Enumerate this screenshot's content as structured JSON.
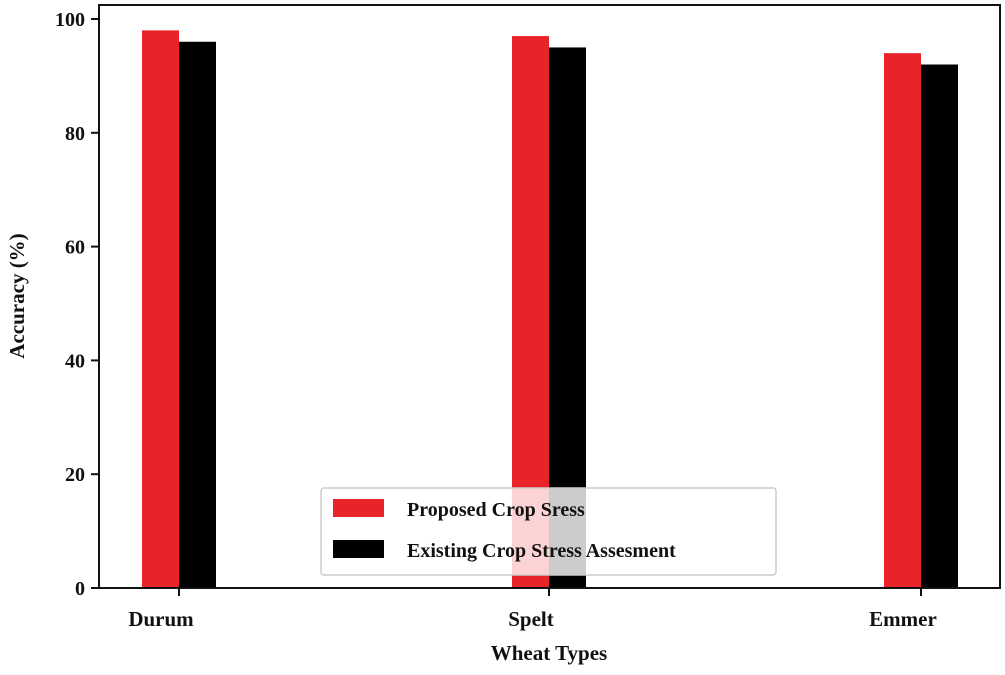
{
  "chart_data": {
    "type": "bar",
    "title": "",
    "xlabel": "Wheat Types",
    "ylabel": "Accuracy (%)",
    "categories": [
      "Durum",
      "Spelt",
      "Emmer"
    ],
    "ylim": [
      0,
      100
    ],
    "yticks": [
      "0",
      "20",
      "40",
      "60",
      "80",
      "100"
    ],
    "series": [
      {
        "name": "Proposed Crop Sress",
        "color": "#e8242a",
        "values": [
          98,
          97,
          94
        ]
      },
      {
        "name": "Existing Crop Stress Assesment",
        "color": "#000000",
        "values": [
          96,
          95,
          92
        ]
      }
    ],
    "grid": false,
    "legend_position": "bottom-center"
  }
}
